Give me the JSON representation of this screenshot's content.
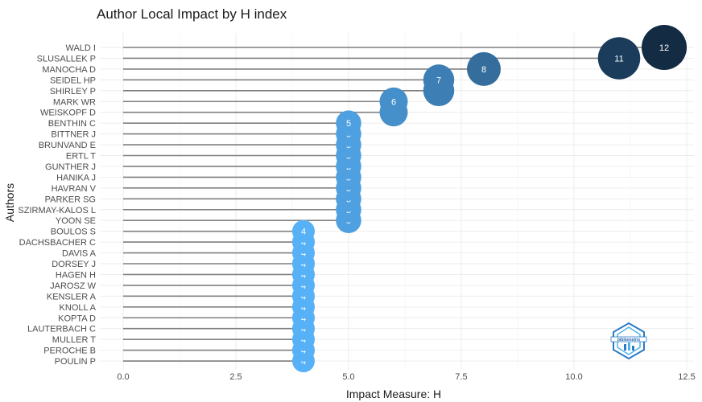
{
  "chart_data": {
    "type": "lollipop",
    "title": "Author Local Impact by H index",
    "xlabel": "Impact Measure: H",
    "ylabel": "Authors",
    "xlim": [
      0,
      12.5
    ],
    "x_ticks": [
      "0.0",
      "2.5",
      "5.0",
      "7.5",
      "10.0",
      "12.5"
    ],
    "grid": true,
    "categories": [
      "WALD I",
      "SLUSALLEK P",
      "MANOCHA D",
      "SEIDEL HP",
      "SHIRLEY P",
      "MARK WR",
      "WEISKOPF D",
      "BENTHIN C",
      "BITTNER J",
      "BRUNVAND E",
      "ERTL T",
      "GUNTHER J",
      "HANIKA J",
      "HAVRAN V",
      "PARKER SG",
      "SZIRMAY-KALOS L",
      "YOON SE",
      "BOULOS S",
      "DACHSBACHER C",
      "DAVIS A",
      "DORSEY J",
      "HAGEN H",
      "JAROSZ W",
      "KENSLER A",
      "KNOLL A",
      "KOPTA D",
      "LAUTERBACH C",
      "MULLER T",
      "PEROCHE B",
      "POULIN P"
    ],
    "values": [
      12,
      11,
      8,
      7,
      7,
      6,
      6,
      5,
      5,
      5,
      5,
      5,
      5,
      5,
      5,
      5,
      5,
      4,
      4,
      4,
      4,
      4,
      4,
      4,
      4,
      4,
      4,
      4,
      4,
      4
    ],
    "color_scale": {
      "low": "#56b1f7",
      "high": "#132b43"
    }
  },
  "logo": {
    "text": "bibliometrix",
    "icon": "bibliometrix-logo-icon"
  }
}
